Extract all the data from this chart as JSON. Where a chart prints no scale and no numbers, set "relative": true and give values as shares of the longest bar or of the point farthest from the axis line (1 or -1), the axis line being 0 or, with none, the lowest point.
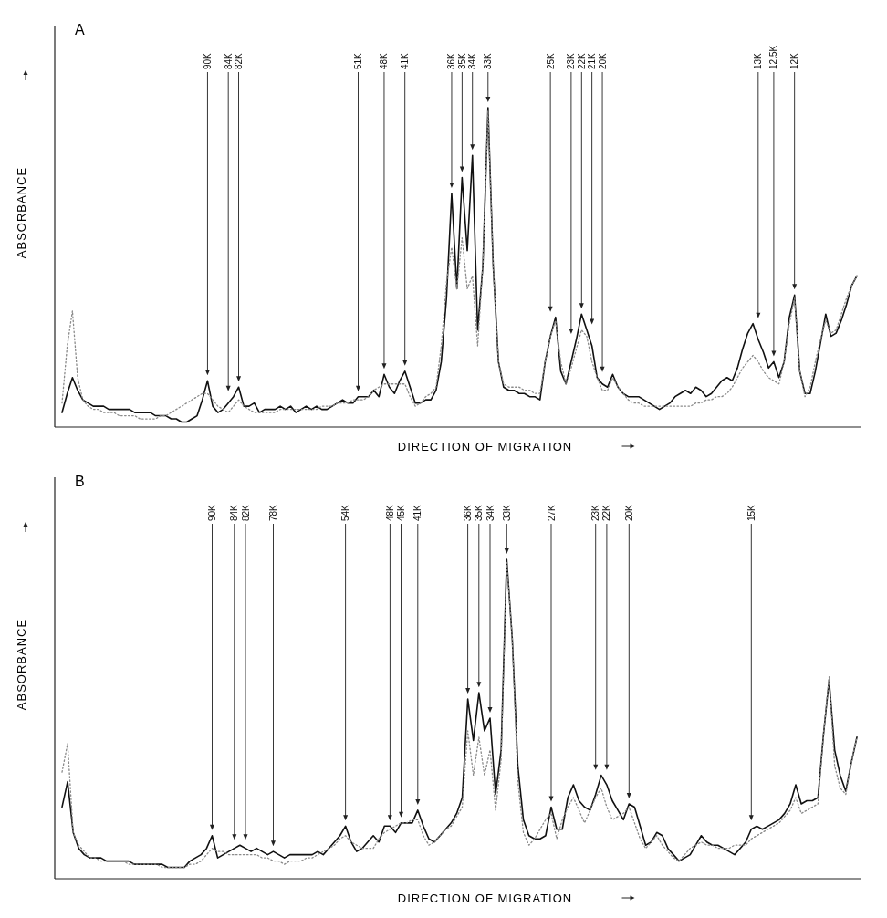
{
  "chart_data": [
    {
      "type": "line",
      "title": "A",
      "xlabel": "DIRECTION OF MIGRATION",
      "ylabel": "ABSORBANCE",
      "relative": true,
      "categories": [
        null,
        null,
        null,
        null,
        null,
        null,
        null,
        null,
        null,
        null,
        null,
        null,
        null,
        null,
        null,
        null,
        null,
        null,
        null,
        null,
        null,
        null,
        null,
        null,
        null,
        null,
        null,
        null,
        "90K",
        null,
        null,
        null,
        "84K",
        null,
        "82K",
        null,
        null,
        null,
        null,
        null,
        null,
        null,
        null,
        null,
        null,
        null,
        null,
        null,
        null,
        null,
        null,
        null,
        null,
        null,
        null,
        null,
        null,
        "51K",
        null,
        null,
        null,
        null,
        "48K",
        null,
        null,
        null,
        "41K",
        null,
        null,
        null,
        null,
        null,
        null,
        null,
        null,
        "36K",
        null,
        "35K",
        null,
        "34K",
        null,
        null,
        "33K",
        null,
        null,
        null,
        null,
        null,
        null,
        null,
        null,
        null,
        null,
        null,
        "25K",
        null,
        null,
        null,
        "23K",
        null,
        "22K",
        null,
        "21K",
        null,
        "20K",
        null,
        null,
        null,
        null,
        null,
        null,
        null,
        null,
        null,
        null,
        null,
        null,
        null,
        null,
        null,
        null,
        null,
        null,
        null,
        null,
        null,
        null,
        null,
        null,
        null,
        null,
        null,
        null,
        null,
        "13K",
        null,
        null,
        "12.5K",
        null,
        null,
        null,
        "12K",
        null,
        null,
        null,
        null,
        null,
        null,
        null,
        null,
        null,
        null,
        null,
        null
      ],
      "series": [
        {
          "color": "#111111",
          "line_style": "solid",
          "values": [
            0.04,
            0.1,
            0.15,
            0.11,
            0.08,
            0.07,
            0.06,
            0.06,
            0.06,
            0.05,
            0.05,
            0.05,
            0.05,
            0.05,
            0.04,
            0.04,
            0.04,
            0.04,
            0.03,
            0.03,
            0.03,
            0.02,
            0.02,
            0.01,
            0.01,
            0.02,
            0.03,
            0.08,
            0.14,
            0.06,
            0.04,
            0.05,
            0.07,
            0.09,
            0.12,
            0.06,
            0.06,
            0.07,
            0.04,
            0.05,
            0.05,
            0.05,
            0.06,
            0.05,
            0.06,
            0.04,
            0.05,
            0.06,
            0.05,
            0.06,
            0.05,
            0.05,
            0.06,
            0.07,
            0.08,
            0.07,
            0.07,
            0.09,
            0.09,
            0.09,
            0.11,
            0.09,
            0.16,
            0.12,
            0.1,
            0.14,
            0.17,
            0.12,
            0.07,
            0.07,
            0.08,
            0.08,
            0.11,
            0.2,
            0.4,
            0.73,
            0.43,
            0.78,
            0.55,
            0.85,
            0.3,
            0.5,
            1,
            0.5,
            0.2,
            0.12,
            0.11,
            0.11,
            0.1,
            0.1,
            0.09,
            0.09,
            0.08,
            0.2,
            0.28,
            0.34,
            0.17,
            0.13,
            0.2,
            0.27,
            0.35,
            0.3,
            0.25,
            0.15,
            0.13,
            0.12,
            0.16,
            0.12,
            0.1,
            0.09,
            0.09,
            0.09,
            0.08,
            0.07,
            0.06,
            0.05,
            0.06,
            0.07,
            0.09,
            0.1,
            0.11,
            0.1,
            0.12,
            0.11,
            0.09,
            0.1,
            0.12,
            0.14,
            0.15,
            0.14,
            0.18,
            0.24,
            0.29,
            0.32,
            0.27,
            0.23,
            0.18,
            0.2,
            0.15,
            0.2,
            0.34,
            0.41,
            0.17,
            0.1,
            0.1,
            0.17,
            0.26,
            0.35,
            0.28,
            0.29,
            0.33,
            0.38,
            0.44,
            0.47
          ]
        },
        {
          "color": "#8a8a8a",
          "line_style": "dotted",
          "values": [
            0.07,
            0.25,
            0.36,
            0.15,
            0.08,
            0.06,
            0.05,
            0.05,
            0.04,
            0.04,
            0.04,
            0.03,
            0.03,
            0.03,
            0.03,
            0.02,
            0.02,
            0.02,
            0.02,
            0.03,
            0.03,
            0.04,
            0.05,
            0.06,
            0.07,
            0.08,
            0.09,
            0.1,
            0.1,
            0.08,
            0.06,
            0.05,
            0.04,
            0.06,
            0.08,
            0.06,
            0.05,
            0.04,
            0.04,
            0.04,
            0.04,
            0.04,
            0.05,
            0.05,
            0.05,
            0.05,
            0.05,
            0.05,
            0.05,
            0.05,
            0.06,
            0.06,
            0.06,
            0.07,
            0.07,
            0.07,
            0.08,
            0.08,
            0.08,
            0.09,
            0.11,
            0.12,
            0.13,
            0.13,
            0.13,
            0.13,
            0.13,
            0.09,
            0.06,
            0.07,
            0.09,
            0.1,
            0.12,
            0.25,
            0.45,
            0.56,
            0.43,
            0.59,
            0.43,
            0.47,
            0.25,
            0.5,
            0.99,
            0.5,
            0.2,
            0.13,
            0.12,
            0.12,
            0.12,
            0.11,
            0.11,
            0.1,
            0.1,
            0.2,
            0.28,
            0.33,
            0.2,
            0.13,
            0.18,
            0.24,
            0.3,
            0.28,
            0.2,
            0.15,
            0.11,
            0.11,
            0.15,
            0.12,
            0.1,
            0.08,
            0.07,
            0.07,
            0.06,
            0.06,
            0.06,
            0.06,
            0.06,
            0.06,
            0.06,
            0.06,
            0.06,
            0.06,
            0.07,
            0.07,
            0.08,
            0.08,
            0.09,
            0.09,
            0.1,
            0.12,
            0.15,
            0.18,
            0.2,
            0.22,
            0.2,
            0.17,
            0.15,
            0.14,
            0.13,
            0.2,
            0.32,
            0.4,
            0.17,
            0.09,
            0.12,
            0.2,
            0.27,
            0.33,
            0.29,
            0.3,
            0.35,
            0.4,
            0.44,
            0.47
          ]
        }
      ]
    },
    {
      "type": "line",
      "title": "B",
      "xlabel": "DIRECTION OF MIGRATION",
      "ylabel": "ABSORBANCE",
      "relative": true,
      "categories": [
        null,
        null,
        null,
        null,
        null,
        null,
        null,
        null,
        null,
        null,
        null,
        null,
        null,
        null,
        null,
        null,
        null,
        null,
        null,
        null,
        null,
        null,
        null,
        null,
        null,
        null,
        null,
        "90K",
        null,
        null,
        null,
        "84K",
        null,
        "82K",
        null,
        null,
        null,
        null,
        "78K",
        null,
        null,
        null,
        null,
        null,
        null,
        null,
        null,
        null,
        null,
        null,
        null,
        "54K",
        null,
        null,
        null,
        null,
        null,
        null,
        null,
        "48K",
        null,
        "45K",
        null,
        null,
        "41K",
        null,
        null,
        null,
        null,
        null,
        null,
        null,
        null,
        "36K",
        null,
        "35K",
        null,
        "34K",
        null,
        null,
        "33K",
        null,
        null,
        null,
        null,
        null,
        null,
        null,
        "27K",
        null,
        null,
        null,
        null,
        null,
        null,
        null,
        "23K",
        null,
        "22K",
        null,
        null,
        null,
        "20K",
        null,
        null,
        null,
        null,
        null,
        null,
        null,
        null,
        null,
        null,
        null,
        null,
        null,
        null,
        null,
        null,
        null,
        null,
        null,
        null,
        null,
        "15K",
        null,
        null,
        null,
        null,
        null,
        null,
        null,
        null,
        null,
        null,
        null,
        null,
        null,
        null,
        null,
        null,
        null,
        null,
        null
      ],
      "series": [
        {
          "color": "#111111",
          "line_style": "solid",
          "values": [
            0.22,
            0.3,
            0.14,
            0.09,
            0.07,
            0.06,
            0.06,
            0.06,
            0.05,
            0.05,
            0.05,
            0.05,
            0.05,
            0.04,
            0.04,
            0.04,
            0.04,
            0.04,
            0.04,
            0.03,
            0.03,
            0.03,
            0.03,
            0.05,
            0.06,
            0.07,
            0.09,
            0.13,
            0.06,
            0.07,
            0.08,
            0.09,
            0.1,
            0.09,
            0.08,
            0.09,
            0.08,
            0.07,
            0.08,
            0.07,
            0.06,
            0.07,
            0.07,
            0.07,
            0.07,
            0.07,
            0.08,
            0.07,
            0.09,
            0.11,
            0.13,
            0.16,
            0.11,
            0.08,
            0.09,
            0.11,
            0.13,
            0.11,
            0.16,
            0.16,
            0.14,
            0.17,
            0.17,
            0.17,
            0.21,
            0.16,
            0.12,
            0.11,
            0.13,
            0.15,
            0.17,
            0.2,
            0.25,
            0.56,
            0.43,
            0.58,
            0.46,
            0.5,
            0.26,
            0.4,
            1,
            0.75,
            0.35,
            0.18,
            0.13,
            0.12,
            0.12,
            0.13,
            0.22,
            0.15,
            0.15,
            0.25,
            0.29,
            0.24,
            0.22,
            0.21,
            0.26,
            0.32,
            0.29,
            0.24,
            0.21,
            0.18,
            0.23,
            0.22,
            0.16,
            0.1,
            0.11,
            0.14,
            0.13,
            0.09,
            0.07,
            0.05,
            0.06,
            0.07,
            0.1,
            0.13,
            0.11,
            0.1,
            0.1,
            0.09,
            0.08,
            0.07,
            0.09,
            0.11,
            0.15,
            0.16,
            0.15,
            0.16,
            0.17,
            0.18,
            0.2,
            0.23,
            0.29,
            0.23,
            0.24,
            0.24,
            0.25,
            0.45,
            0.62,
            0.4,
            0.32,
            0.27,
            0.36,
            0.44
          ]
        },
        {
          "color": "#8a8a8a",
          "line_style": "dotted",
          "values": [
            0.33,
            0.42,
            0.14,
            0.1,
            0.08,
            0.06,
            0.06,
            0.05,
            0.05,
            0.05,
            0.05,
            0.05,
            0.04,
            0.04,
            0.04,
            0.04,
            0.04,
            0.04,
            0.03,
            0.03,
            0.03,
            0.03,
            0.03,
            0.04,
            0.04,
            0.05,
            0.07,
            0.09,
            0.08,
            0.08,
            0.07,
            0.07,
            0.07,
            0.07,
            0.07,
            0.07,
            0.06,
            0.06,
            0.05,
            0.05,
            0.04,
            0.05,
            0.05,
            0.05,
            0.06,
            0.06,
            0.07,
            0.08,
            0.09,
            0.1,
            0.12,
            0.13,
            0.11,
            0.1,
            0.09,
            0.09,
            0.09,
            0.12,
            0.14,
            0.15,
            0.16,
            0.17,
            0.17,
            0.18,
            0.18,
            0.13,
            0.1,
            0.11,
            0.13,
            0.15,
            0.16,
            0.19,
            0.22,
            0.46,
            0.32,
            0.44,
            0.32,
            0.4,
            0.21,
            0.37,
            0.99,
            0.75,
            0.3,
            0.14,
            0.1,
            0.12,
            0.15,
            0.18,
            0.2,
            0.12,
            0.18,
            0.22,
            0.25,
            0.21,
            0.17,
            0.21,
            0.25,
            0.28,
            0.22,
            0.18,
            0.19,
            0.2,
            0.22,
            0.17,
            0.12,
            0.09,
            0.11,
            0.13,
            0.1,
            0.08,
            0.06,
            0.05,
            0.07,
            0.09,
            0.1,
            0.11,
            0.1,
            0.1,
            0.09,
            0.09,
            0.09,
            0.1,
            0.1,
            0.1,
            0.12,
            0.13,
            0.14,
            0.15,
            0.16,
            0.17,
            0.19,
            0.21,
            0.25,
            0.2,
            0.21,
            0.22,
            0.23,
            0.45,
            0.63,
            0.35,
            0.28,
            0.26,
            0.36,
            0.44
          ]
        }
      ]
    }
  ]
}
